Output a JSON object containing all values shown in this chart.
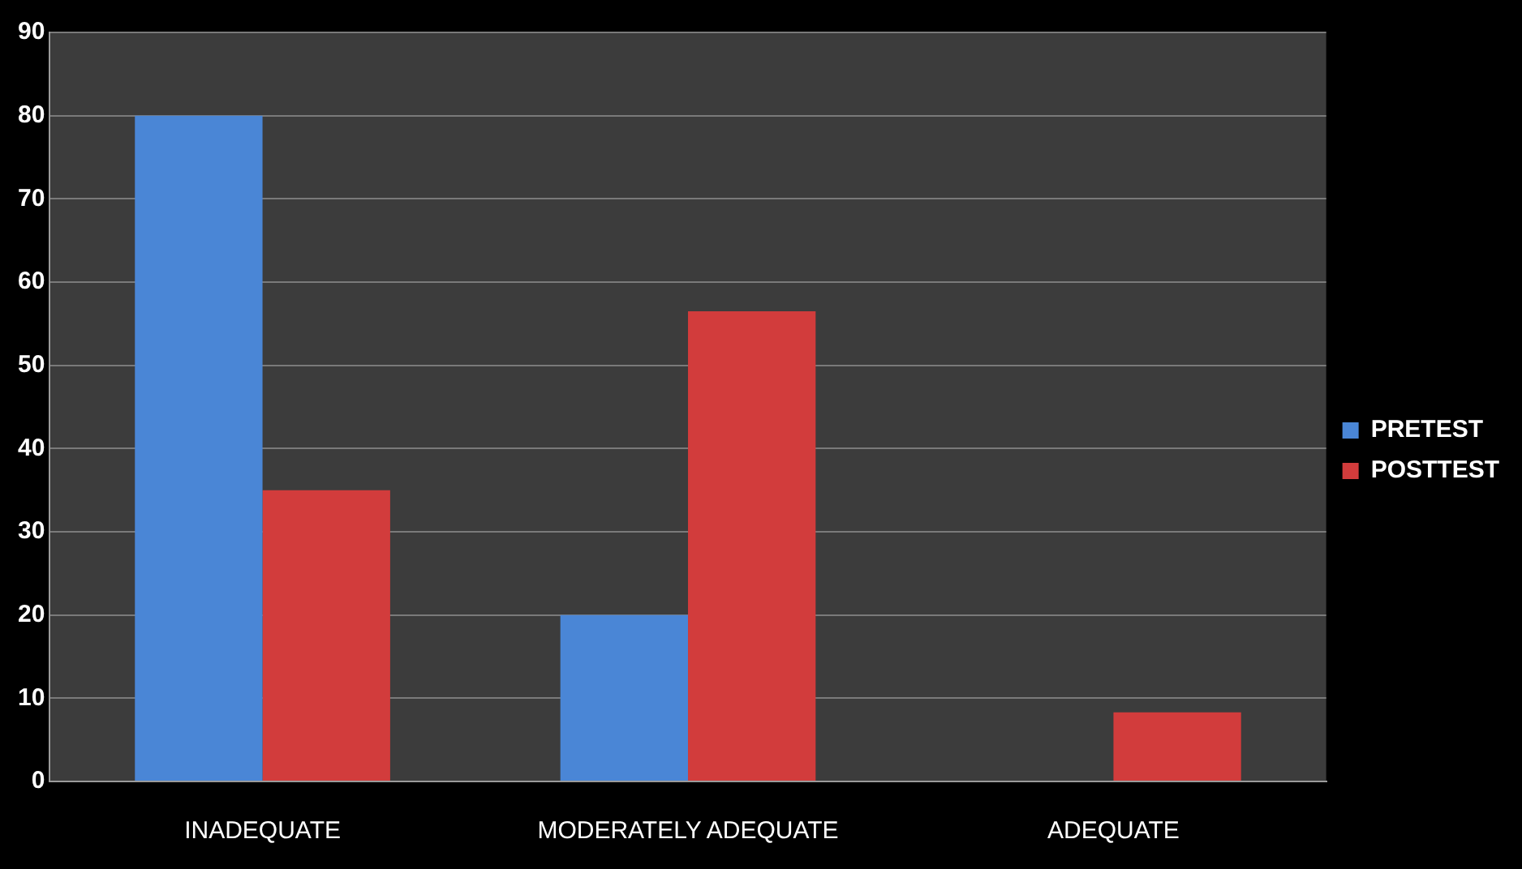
{
  "chart_data": {
    "type": "bar",
    "categories": [
      "INADEQUATE",
      "MODERATELY ADEQUATE",
      "ADEQUATE"
    ],
    "series": [
      {
        "name": "PRETEST",
        "color": "#4a86d6",
        "values": [
          80,
          20,
          0
        ]
      },
      {
        "name": "POSTTEST",
        "color": "#d23c3c",
        "values": [
          35,
          56.5,
          8.3
        ]
      }
    ],
    "ylim": [
      0,
      90
    ],
    "yticks": [
      0,
      10,
      20,
      30,
      40,
      50,
      60,
      70,
      80,
      90
    ],
    "grid": "y",
    "legend": "right"
  }
}
